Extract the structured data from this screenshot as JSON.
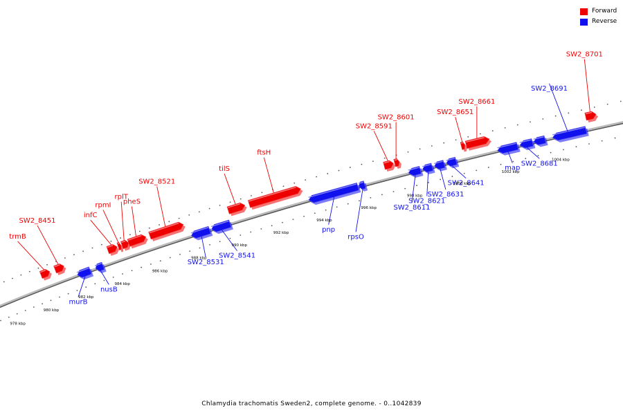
{
  "colors": {
    "forward": "#ee0000",
    "reverse": "#1111ee",
    "backbone": "#888888"
  },
  "legend": [
    {
      "label": "Forward",
      "color": "#ee0000"
    },
    {
      "label": "Reverse",
      "color": "#1111ee"
    }
  ],
  "caption": "Chlamydia trachomatis Sweden2, complete genome. - 0..1042839",
  "genes": [
    {
      "label": "trmB",
      "strand": "forward",
      "start": 980.2,
      "end": 980.7
    },
    {
      "label": "SW2_8451",
      "strand": "forward",
      "start": 981.0,
      "end": 981.5
    },
    {
      "label": "murB",
      "strand": "reverse",
      "start": 982.0,
      "end": 982.7
    },
    {
      "label": "nusB",
      "strand": "reverse",
      "start": 983.0,
      "end": 983.4
    },
    {
      "label": "infC",
      "strand": "forward",
      "start": 983.9,
      "end": 984.4
    },
    {
      "label": "rpmI",
      "strand": "forward",
      "start": 984.45,
      "end": 984.6
    },
    {
      "label": "rplT",
      "strand": "forward",
      "start": 984.65,
      "end": 985.0
    },
    {
      "label": "pheS",
      "strand": "forward",
      "start": 985.0,
      "end": 985.9
    },
    {
      "label": "SW2_8521",
      "strand": "forward",
      "start": 986.1,
      "end": 987.8
    },
    {
      "label": "SW2_8531",
      "strand": "reverse",
      "start": 988.0,
      "end": 988.9
    },
    {
      "label": "SW2_8541",
      "strand": "reverse",
      "start": 989.0,
      "end": 989.9
    },
    {
      "label": "tilS",
      "strand": "forward",
      "start": 990.0,
      "end": 990.8
    },
    {
      "label": "ftsH",
      "strand": "forward",
      "start": 991.0,
      "end": 993.4
    },
    {
      "label": "pnp",
      "strand": "reverse",
      "start": 993.6,
      "end": 995.8
    },
    {
      "label": "rpsO",
      "strand": "reverse",
      "start": 995.85,
      "end": 996.1
    },
    {
      "label": "SW2_8591",
      "strand": "forward",
      "start": 997.1,
      "end": 997.5
    },
    {
      "label": "SW2_8601",
      "strand": "forward",
      "start": 997.55,
      "end": 997.75
    },
    {
      "label": "SW2_8611",
      "strand": "reverse",
      "start": 998.0,
      "end": 998.5
    },
    {
      "label": "SW2_8621",
      "strand": "reverse",
      "start": 998.6,
      "end": 999.0
    },
    {
      "label": "SW2_8631",
      "strand": "reverse",
      "start": 999.1,
      "end": 999.5
    },
    {
      "label": "SW2_8641",
      "strand": "reverse",
      "start": 999.6,
      "end": 1000.0
    },
    {
      "label": "SW2_8651",
      "strand": "forward",
      "start": 1000.35,
      "end": 1000.5
    },
    {
      "label": "SW2_8661",
      "strand": "forward",
      "start": 1000.55,
      "end": 1001.5
    },
    {
      "label": "map",
      "strand": "reverse",
      "start": 1001.7,
      "end": 1002.5
    },
    {
      "label": "SW2_8681",
      "strand": "reverse",
      "start": 1002.6,
      "end": 1003.1
    },
    {
      "label": "",
      "strand": "reverse",
      "start": 1003.15,
      "end": 1003.6
    },
    {
      "label": "SW2_8691",
      "strand": "reverse",
      "start": 1003.9,
      "end": 1005.2
    },
    {
      "label": "SW2_8701",
      "strand": "forward",
      "start": 1005.3,
      "end": 1005.7
    }
  ],
  "scale_labels": [
    {
      "label": "978 kbp",
      "value": 978
    },
    {
      "label": "980 kbp",
      "value": 980
    },
    {
      "label": "982 kbp",
      "value": 982
    },
    {
      "label": "984 kbp",
      "value": 984
    },
    {
      "label": "986 kbp",
      "value": 986
    },
    {
      "label": "988 kbp",
      "value": 988
    },
    {
      "label": "990 kbp",
      "value": 990
    },
    {
      "label": "992 kbp",
      "value": 992
    },
    {
      "label": "994 kbp",
      "value": 994
    },
    {
      "label": "996 kbp",
      "value": 996
    },
    {
      "label": "998 kbp",
      "value": 998
    },
    {
      "label": "1000 kbp",
      "value": 1000
    },
    {
      "label": "1002 kbp",
      "value": 1002
    },
    {
      "label": "1004 kbp",
      "value": 1004
    }
  ]
}
